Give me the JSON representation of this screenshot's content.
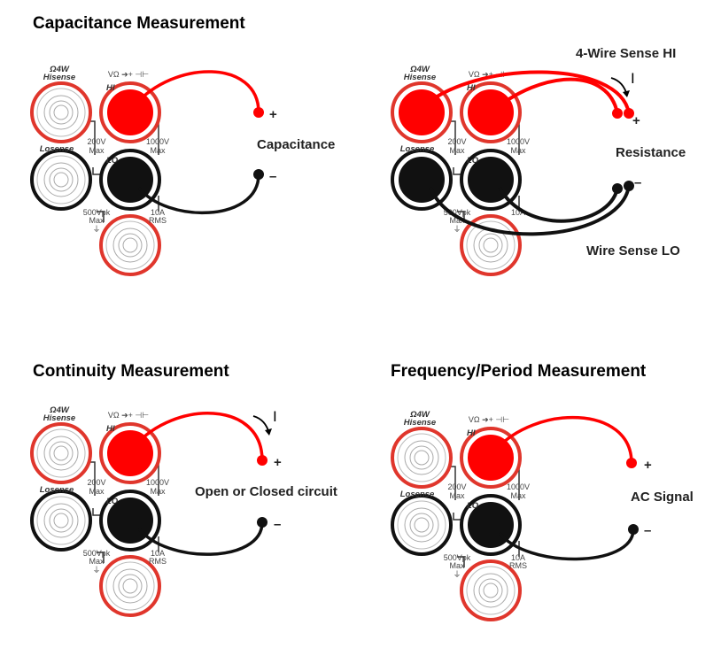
{
  "terminal_labels": {
    "o4w": "Ω4W",
    "hisense": "Hisense",
    "hi_symbols": "VΩ ➔+ ⊣⊢",
    "hi": "HI",
    "v200": "200V",
    "max": "Max",
    "v1000": "1000V",
    "losense": "Losense",
    "lo": "LO",
    "v500": "500Vpk",
    "a10": "10A",
    "rms": "RMS"
  },
  "colors": {
    "red": "#ff0000",
    "black": "#111111",
    "ring_red": "#e0362c"
  },
  "panels": [
    {
      "title": "Capacitance Measurement",
      "label": "Capacitance",
      "plus": "+",
      "minus": "–",
      "filled": [
        "hi",
        "lo"
      ],
      "four_wire": false,
      "current_arrow": false
    },
    {
      "title": "",
      "label": "Resistance",
      "plus": "+",
      "minus": "–",
      "filled": [
        "hisense",
        "hi",
        "losense",
        "lo"
      ],
      "four_wire": true,
      "current_arrow": true,
      "sense_hi": "4-Wire Sense HI",
      "sense_lo": "Wire Sense LO",
      "current_symbol": "I"
    },
    {
      "title": "Continuity Measurement",
      "label": "Open or Closed circuit",
      "plus": "+",
      "minus": "–",
      "filled": [
        "hi",
        "lo"
      ],
      "four_wire": false,
      "current_arrow": true,
      "current_symbol": "I"
    },
    {
      "title": "Frequency/Period Measurement",
      "label": "AC Signal",
      "plus": "+",
      "minus": "–",
      "filled": [
        "hi",
        "lo"
      ],
      "four_wire": false,
      "current_arrow": false
    }
  ]
}
